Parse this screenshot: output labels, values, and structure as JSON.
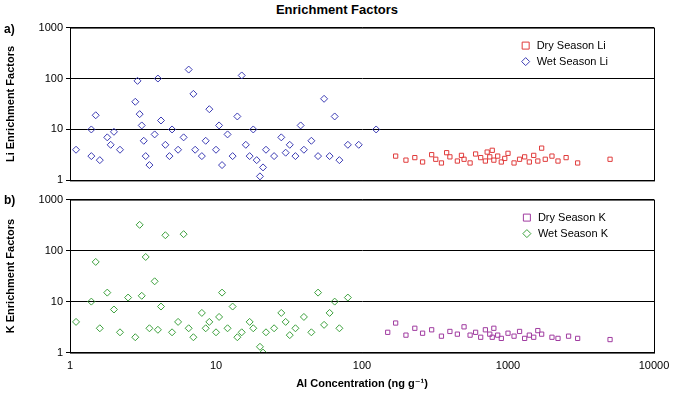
{
  "chart_data": [
    {
      "type": "scatter",
      "title": "Enrichment Factors",
      "annotations": [
        "a)"
      ],
      "y_label": "Li Enrichment Factors",
      "log": true,
      "grid": "y",
      "legend": "upper right",
      "tick_labels": "y",
      "xlim": [
        1,
        10000
      ],
      "xticks": [
        1,
        10,
        100,
        1000,
        10000
      ],
      "ylim": [
        1,
        1000
      ],
      "yticks": [
        1,
        10,
        100,
        1000
      ],
      "series": [
        {
          "name": "Dry Season Li",
          "color": "#e03c3c",
          "marker": "square",
          "x": [
            170,
            200,
            230,
            260,
            300,
            320,
            350,
            380,
            400,
            450,
            480,
            500,
            550,
            600,
            650,
            700,
            720,
            750,
            780,
            800,
            850,
            900,
            950,
            1000,
            1100,
            1200,
            1300,
            1400,
            1500,
            1600,
            1700,
            1800,
            2000,
            2200,
            2500,
            3000,
            5000
          ],
          "values": [
            3,
            2.5,
            2.8,
            2.3,
            3.2,
            2.6,
            2.2,
            3.5,
            2.9,
            2.4,
            3.1,
            2.6,
            2.2,
            3.3,
            2.8,
            2.4,
            3.6,
            2.9,
            3.9,
            2.5,
            3.0,
            2.3,
            2.7,
            3.4,
            2.2,
            2.6,
            2.9,
            2.3,
            3.1,
            2.4,
            4.3,
            2.6,
            3.0,
            2.4,
            2.8,
            2.2,
            2.6
          ]
        },
        {
          "name": "Wet Season Li",
          "color": "#3c3cb4",
          "marker": "diamond",
          "x": [
            1.1,
            1.4,
            1.5,
            1.4,
            1.6,
            1.8,
            1.9,
            2.0,
            2.2,
            2.8,
            2.9,
            3.0,
            3.1,
            3.2,
            3.3,
            3.5,
            3.8,
            4.0,
            4.2,
            4.5,
            4.8,
            5,
            5.5,
            6,
            6.5,
            7,
            7.2,
            8,
            8.5,
            9,
            10,
            10.5,
            11,
            12,
            13,
            14,
            15,
            16,
            17,
            18,
            19,
            20,
            21,
            22,
            25,
            28,
            30,
            32,
            35,
            38,
            40,
            45,
            50,
            55,
            60,
            65,
            70,
            80,
            95,
            125
          ],
          "values": [
            4,
            10,
            19,
            3,
            2.5,
            7,
            5,
            9,
            4,
            35,
            90,
            20,
            12,
            6,
            3,
            2,
            8,
            100,
            15,
            5,
            3,
            10,
            4,
            7,
            150,
            50,
            4,
            3,
            6,
            25,
            4,
            12,
            2,
            8,
            3,
            18,
            115,
            5,
            3,
            10,
            2.5,
            1.2,
            1.8,
            4,
            3,
            7,
            3.5,
            5,
            3,
            12,
            4,
            6,
            3,
            40,
            3,
            18,
            2.5,
            5,
            5,
            10
          ]
        }
      ]
    },
    {
      "type": "scatter",
      "annotations": [
        "b)"
      ],
      "x_label": "Al Concentration (ng g⁻¹)",
      "y_label": "K Enrichment Factors",
      "log": true,
      "grid": "y",
      "legend": "upper right",
      "tick_labels": true,
      "xlim": [
        1,
        10000
      ],
      "xticks": [
        1,
        10,
        100,
        1000,
        10000
      ],
      "ylim": [
        1,
        1000
      ],
      "yticks": [
        1,
        10,
        100,
        1000
      ],
      "series": [
        {
          "name": "Dry Season K",
          "color": "#a03ca0",
          "marker": "square",
          "x": [
            150,
            170,
            200,
            230,
            260,
            300,
            350,
            400,
            450,
            500,
            550,
            600,
            650,
            700,
            750,
            780,
            800,
            850,
            900,
            1000,
            1100,
            1200,
            1300,
            1400,
            1500,
            1600,
            1700,
            2000,
            2200,
            2600,
            3000,
            5000
          ],
          "values": [
            2.5,
            3.8,
            2.2,
            3.0,
            2.4,
            2.8,
            2.1,
            2.6,
            2.3,
            3.2,
            2.2,
            2.5,
            2.0,
            2.8,
            2.3,
            2.0,
            3.0,
            2.2,
            1.9,
            2.4,
            2.1,
            2.6,
            1.9,
            2.2,
            2.0,
            2.7,
            2.3,
            2.0,
            1.9,
            2.1,
            1.9,
            1.8
          ]
        },
        {
          "name": "Wet Season K",
          "color": "#3ca03c",
          "marker": "diamond",
          "x": [
            1.1,
            1.4,
            1.5,
            1.6,
            1.8,
            2,
            2.2,
            2.5,
            2.8,
            3.0,
            3.1,
            3.3,
            3.5,
            3.8,
            4.0,
            4.2,
            4.5,
            5,
            5.5,
            6,
            6.5,
            7,
            8,
            8.5,
            9,
            10,
            10.5,
            11,
            12,
            13,
            14,
            15,
            17,
            18,
            20,
            21,
            22,
            25,
            28,
            30,
            32,
            35,
            40,
            45,
            50,
            55,
            60,
            65,
            70,
            80
          ],
          "values": [
            4,
            10,
            60,
            3,
            15,
            7,
            2.5,
            12,
            2,
            320,
            13,
            75,
            3,
            25,
            2.8,
            8,
            200,
            2.5,
            4,
            210,
            3,
            2,
            6,
            3,
            4,
            2.5,
            5,
            15,
            3,
            8,
            2,
            2.5,
            4,
            3,
            1.3,
            1,
            2.5,
            3,
            6,
            4,
            2.2,
            3,
            5,
            2.5,
            15,
            3.5,
            6,
            10,
            3,
            12
          ]
        }
      ]
    }
  ]
}
